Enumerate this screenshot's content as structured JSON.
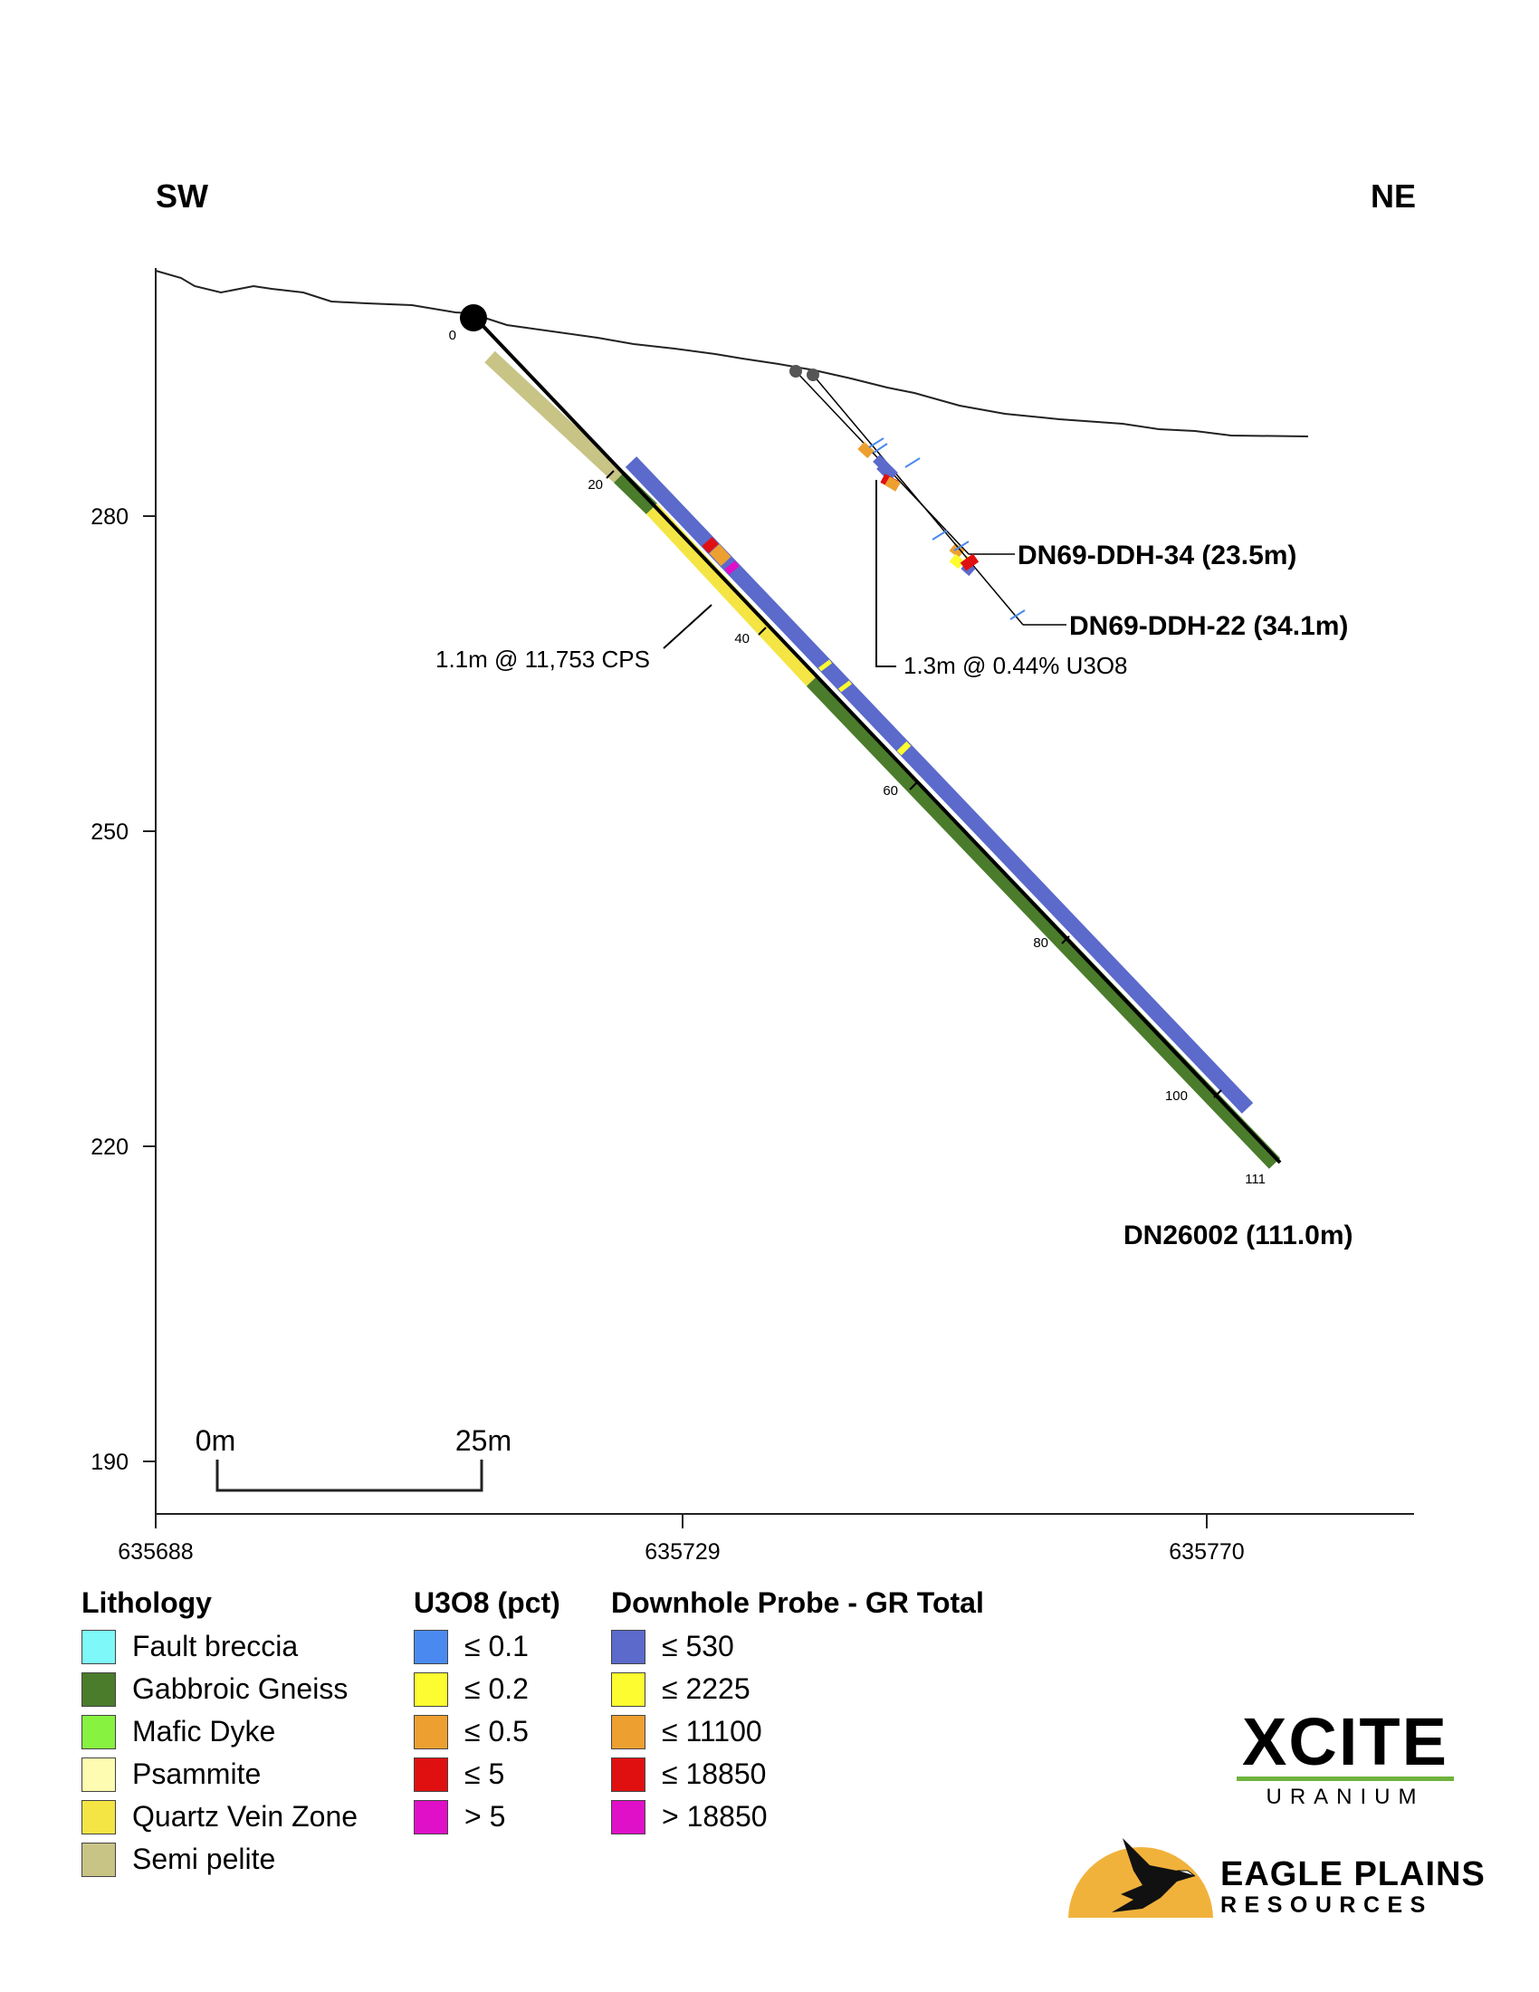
{
  "section": {
    "left_direction": "SW",
    "right_direction": "NE",
    "elevation_ticks": [
      "280",
      "250",
      "220",
      "190"
    ],
    "easting_ticks": [
      "635688",
      "635729",
      "635770"
    ],
    "scale_bar": {
      "start_label": "0m",
      "end_label": "25m"
    }
  },
  "drillholes": {
    "main": {
      "name": "DN26002 (111.0m)",
      "depth_ticks": [
        "0",
        "20",
        "40",
        "60",
        "80",
        "100",
        "111"
      ],
      "annotation": "1.1m @ 11,753 CPS"
    },
    "historic_1": {
      "name": "DN69-DDH-34 (23.5m)"
    },
    "historic_2": {
      "name": "DN69-DDH-22 (34.1m)",
      "annotation": "1.3m @ 0.44% U3O8"
    }
  },
  "legend": {
    "lithology": {
      "title": "Lithology",
      "items": [
        {
          "label": "Fault breccia",
          "color": "#7ef8f8"
        },
        {
          "label": "Gabbroic Gneiss",
          "color": "#4a7c2c"
        },
        {
          "label": "Mafic Dyke",
          "color": "#88f241"
        },
        {
          "label": "Psammite",
          "color": "#fdfcb0"
        },
        {
          "label": "Quartz Vein Zone",
          "color": "#f4e545"
        },
        {
          "label": "Semi pelite",
          "color": "#c8c486"
        }
      ]
    },
    "u3o8": {
      "title": "U3O8 (pct)",
      "items": [
        {
          "label": "≤ 0.1",
          "color": "#4a8af0"
        },
        {
          "label": "≤ 0.2",
          "color": "#fcfc30"
        },
        {
          "label": "≤ 0.5",
          "color": "#eda030"
        },
        {
          "label": "≤ 5",
          "color": "#e01010"
        },
        {
          "label": "> 5",
          "color": "#e010c8"
        }
      ]
    },
    "probe": {
      "title": "Downhole Probe - GR Total",
      "items": [
        {
          "label": "≤ 530",
          "color": "#5b6acb"
        },
        {
          "label": "≤ 2225",
          "color": "#fcfc30"
        },
        {
          "label": "≤ 11100",
          "color": "#eda030"
        },
        {
          "label": "≤ 18850",
          "color": "#e01010"
        },
        {
          "label": "> 18850",
          "color": "#e010c8"
        }
      ]
    }
  },
  "logos": {
    "xcite": {
      "word": "XCITE",
      "sub": "URANIUM"
    },
    "eagle": {
      "word": "EAGLE PLAINS",
      "sub": "RESOURCES"
    }
  }
}
